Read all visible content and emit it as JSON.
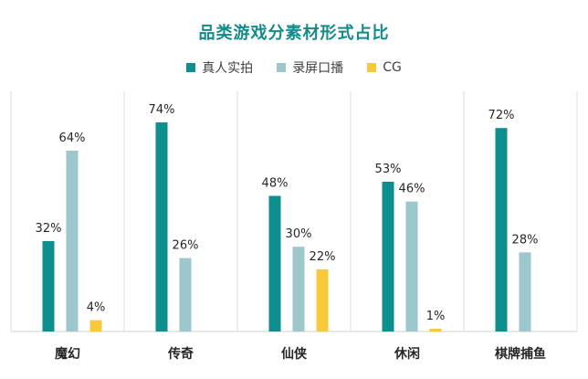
{
  "chart_data": {
    "type": "bar",
    "title": "品类游戏分素材形式占比",
    "categories": [
      "魔幻",
      "传奇",
      "仙侠",
      "休闲",
      "棋牌捕鱼"
    ],
    "series": [
      {
        "name": "真人实拍",
        "color": "#0f8e8e",
        "values": [
          32,
          74,
          48,
          53,
          72
        ]
      },
      {
        "name": "录屏口播",
        "color": "#9ec6cd",
        "values": [
          64,
          26,
          30,
          46,
          28
        ]
      },
      {
        "name": "CG",
        "color": "#f8c93b",
        "values": [
          4,
          null,
          22,
          1,
          null
        ]
      }
    ],
    "value_suffix": "%",
    "ylim": [
      0,
      85
    ],
    "grid": false,
    "legend_position": "top-center",
    "xlabel": "",
    "ylabel": ""
  }
}
